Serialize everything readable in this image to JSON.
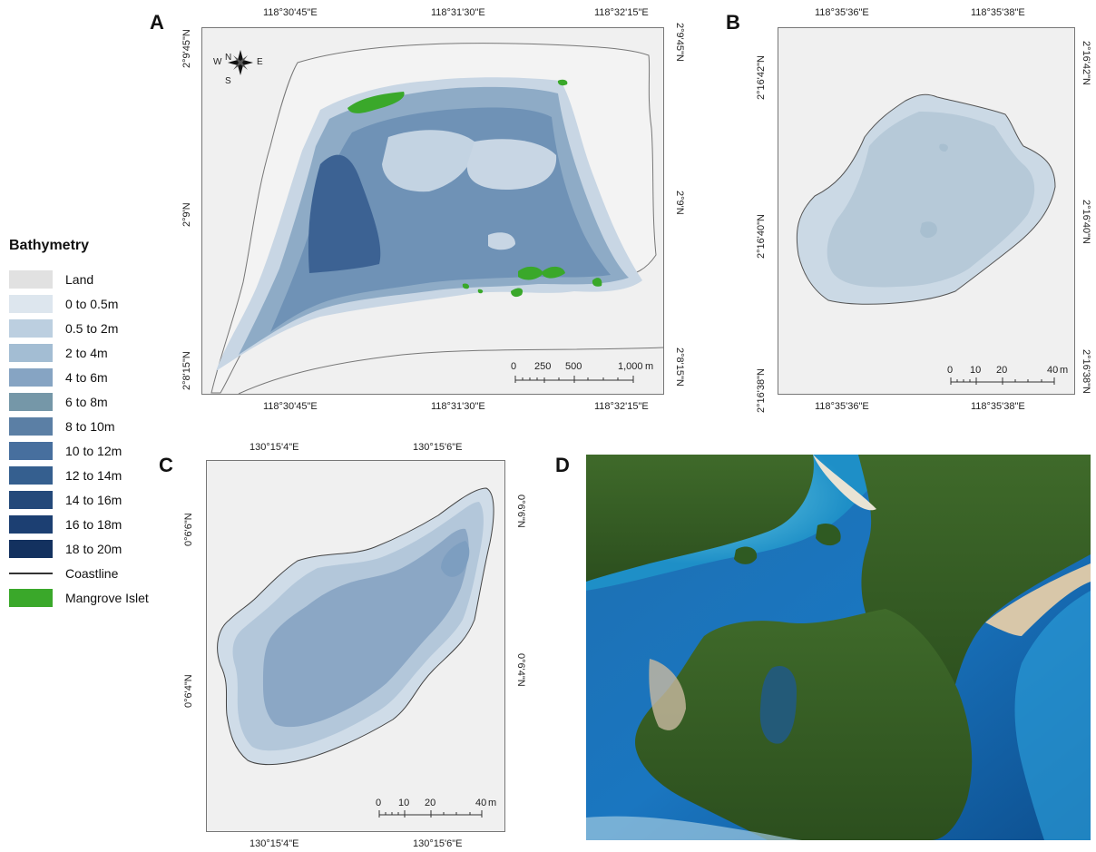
{
  "panels": {
    "a": {
      "label": "A",
      "top_coords": [
        "118°30'45\"E",
        "118°31'30\"E",
        "118°32'15\"E"
      ],
      "bottom_coords": [
        "118°30'45\"E",
        "118°31'30\"E",
        "118°32'15\"E"
      ],
      "left_coords": [
        "2°9'45\"N",
        "2°9'N",
        "2°8'15\"N"
      ],
      "right_coords": [
        "2°9'45\"N",
        "2°9'N",
        "2°8'15\"N"
      ],
      "scale_ticks": [
        "0",
        "250",
        "500",
        "1,000",
        "m"
      ],
      "compass": {
        "n": "N",
        "s": "S",
        "e": "E",
        "w": "W"
      }
    },
    "b": {
      "label": "B",
      "top_coords": [
        "118°35'36\"E",
        "118°35'38\"E"
      ],
      "bottom_coords": [
        "118°35'36\"E",
        "118°35'38\"E"
      ],
      "left_coords": [
        "2°16'42\"N",
        "2°16'40\"N",
        "2°16'38\"N"
      ],
      "right_coords": [
        "2°16'42\"N",
        "2°16'40\"N",
        "2°16'38\"N"
      ],
      "scale_ticks": [
        "0",
        "10",
        "20",
        "40",
        "m"
      ]
    },
    "c": {
      "label": "C",
      "top_coords": [
        "130°15'4\"E",
        "130°15'6\"E"
      ],
      "bottom_coords": [
        "130°15'4\"E",
        "130°15'6\"E"
      ],
      "left_coords": [
        "0°6'6\"N",
        "0°6'4\"N"
      ],
      "right_coords": [
        "0°6'6\"N",
        "0°6'4\"N"
      ],
      "scale_ticks": [
        "0",
        "10",
        "20",
        "40",
        "m"
      ]
    },
    "d": {
      "label": "D"
    }
  },
  "legend": {
    "title": "Bathymetry",
    "items": [
      {
        "label": "Land",
        "color": "#e1e1e1"
      },
      {
        "label": "0 to 0.5m",
        "color": "#dde6ee"
      },
      {
        "label": "0.5 to 2m",
        "color": "#bccfe0"
      },
      {
        "label": "2 to 4m",
        "color": "#a3bdd3"
      },
      {
        "label": "4 to 6m",
        "color": "#86a4c3"
      },
      {
        "label": "6 to 8m",
        "color": "#7597a8"
      },
      {
        "label": "8 to 10m",
        "color": "#5b7fa5"
      },
      {
        "label": "10 to 12m",
        "color": "#476f9e"
      },
      {
        "label": "12 to 14m",
        "color": "#355f8f"
      },
      {
        "label": "14 to 16m",
        "color": "#24497a"
      },
      {
        "label": "16 to 18m",
        "color": "#1c3f72"
      },
      {
        "label": "18 to 20m",
        "color": "#13315f"
      },
      {
        "label": "Coastline",
        "color": "#333333"
      },
      {
        "label": "Mangrove Islet",
        "color": "#3aa82a"
      }
    ]
  }
}
